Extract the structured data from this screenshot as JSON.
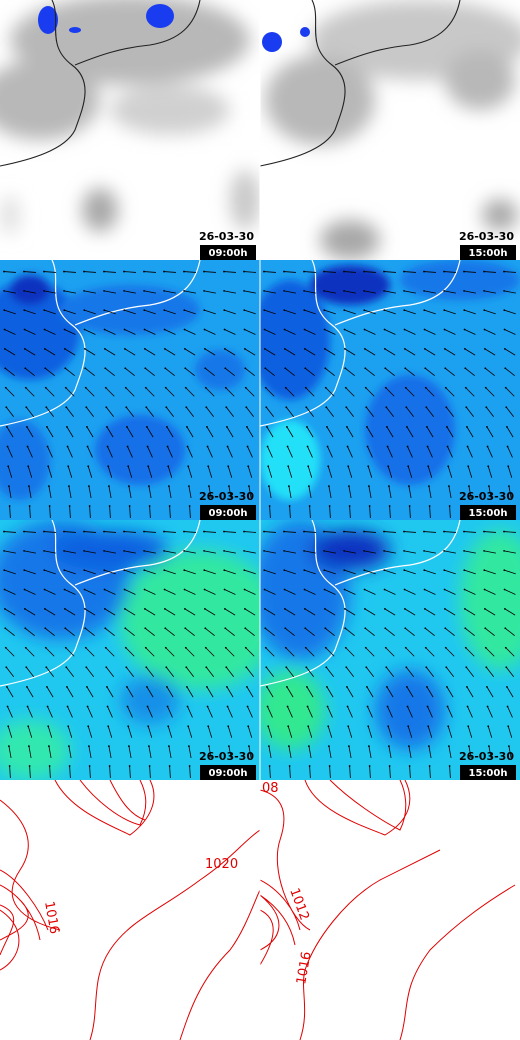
{
  "rows": [
    {
      "panels": [
        {
          "date": "26-03-30",
          "time": "09:00h"
        },
        {
          "date": "26-03-30",
          "time": "15:00h"
        }
      ]
    },
    {
      "panels": [
        {
          "date": "26-03-30",
          "time": "09:00h"
        },
        {
          "date": "26-03-30",
          "time": "15:00h"
        }
      ]
    },
    {
      "panels": [
        {
          "date": "26-03-30",
          "time": "09:00h"
        },
        {
          "date": "26-03-30",
          "time": "15:00h"
        }
      ]
    }
  ],
  "isobar_labels": {
    "left": [
      "1020",
      "1016"
    ],
    "right": [
      "08",
      "1012",
      "1016"
    ]
  }
}
